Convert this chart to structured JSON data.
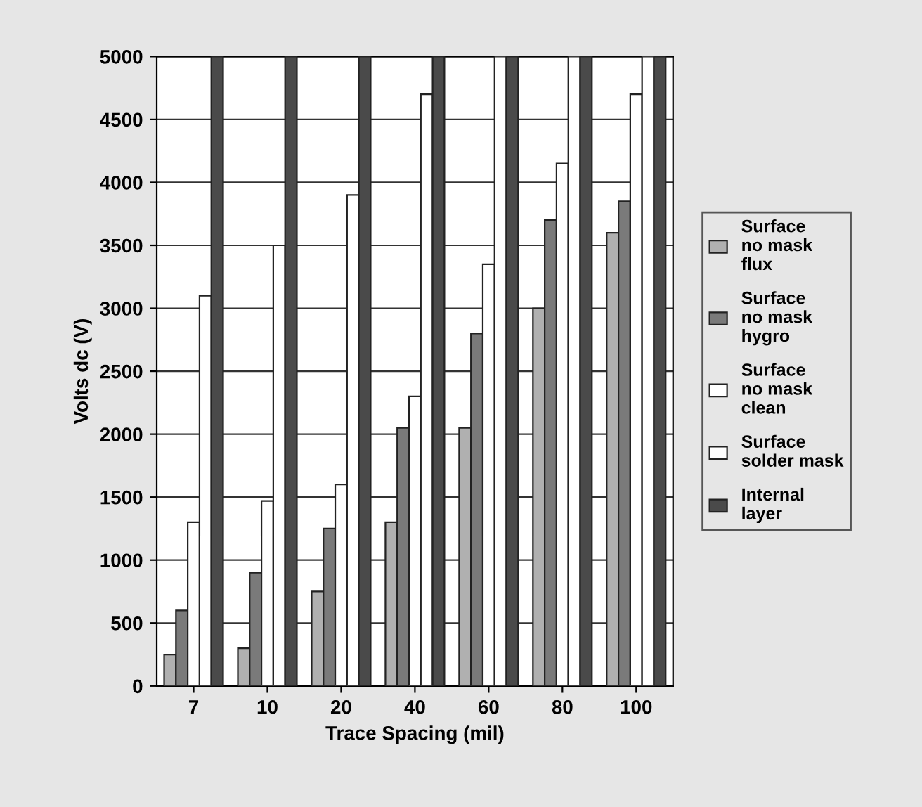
{
  "chart_data": {
    "type": "bar",
    "xlabel": "Trace Spacing (mil)",
    "ylabel": "Volts dc (V)",
    "categories": [
      "7",
      "10",
      "20",
      "40",
      "60",
      "80",
      "100"
    ],
    "series": [
      {
        "name": "Surface\nno mask\nflux",
        "color": "#b0b0b0",
        "values": [
          250,
          300,
          750,
          1300,
          2050,
          3000,
          3600
        ]
      },
      {
        "name": "Surface\nno mask\nhygro",
        "color": "#7a7a7a",
        "values": [
          600,
          900,
          1250,
          2050,
          2800,
          3700,
          3850
        ]
      },
      {
        "name": "Surface\nno mask\nclean",
        "color": "#ffffff",
        "values": [
          1300,
          1470,
          1600,
          2300,
          3350,
          4150,
          4700
        ]
      },
      {
        "name": "Surface\nsolder mask",
        "color": "#ffffff",
        "values": [
          3100,
          3500,
          3900,
          4700,
          5000,
          5000,
          5000
        ]
      },
      {
        "name": "Internal\nlayer",
        "color": "#4a4a4a",
        "values": [
          5000,
          5000,
          5000,
          5000,
          5000,
          5000,
          5000
        ]
      }
    ],
    "ylim": [
      0,
      5000
    ],
    "yticks": [
      0,
      500,
      1000,
      1500,
      2000,
      2500,
      3000,
      3500,
      4000,
      4500,
      5000
    ],
    "grid": "y",
    "legend": "right"
  }
}
